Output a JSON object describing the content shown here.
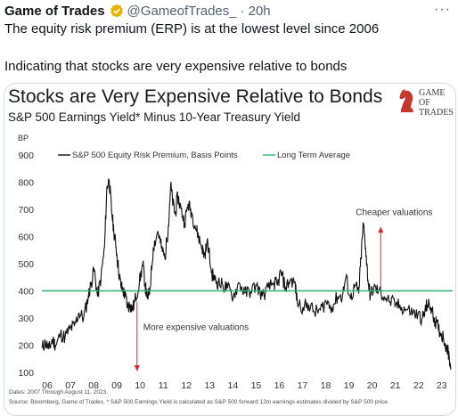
{
  "tweet": {
    "author": "Game of Trades",
    "handle": "@GameofTrades_",
    "separator": "·",
    "time": "20h",
    "menu_label": "···",
    "line1": "The equity risk premium (ERP) is at the lowest level since 2006",
    "line2": "Indicating that stocks are very expensive relative to bonds"
  },
  "logo": {
    "line1": "GAME OF",
    "line2": "TRADES"
  },
  "footnotes": {
    "dates": "Dates: 2007 Through August 11, 2023.",
    "source": "Source: Bloomberg, Game of Trades. * S&P 500 Earnings Yield is calculated as S&P 500 forward 12m earnings estimates divided by S&P 500 price."
  },
  "colors": {
    "series": "#111111",
    "average": "#2bb673",
    "arrow": "#d7262b",
    "card_border": "#cfd9de",
    "verified": "#e6b400"
  },
  "chart_data": {
    "type": "line",
    "title": "Stocks are Very Expensive Relative to Bonds",
    "subtitle": "S&P 500 Earnings Yield* Minus 10-Year Treasury Yield",
    "ylabel": "BP",
    "ylim": [
      100,
      900
    ],
    "yticks": [
      100,
      200,
      300,
      400,
      500,
      600,
      700,
      800,
      900
    ],
    "xlim": [
      2006.0,
      2023.7
    ],
    "xticks": [
      "06",
      "07",
      "08",
      "09",
      "10",
      "11",
      "12",
      "13",
      "14",
      "15",
      "16",
      "17",
      "18",
      "19",
      "20",
      "21",
      "22",
      "23"
    ],
    "grid": false,
    "legend_placement": "top",
    "series": [
      {
        "name": "S&P 500 Equity Risk Premium, Basis Points",
        "x": [
          2006.0,
          2006.15,
          2006.3,
          2006.45,
          2006.6,
          2006.8,
          2007.0,
          2007.2,
          2007.4,
          2007.6,
          2007.8,
          2008.0,
          2008.1,
          2008.25,
          2008.4,
          2008.55,
          2008.7,
          2008.8,
          2008.9,
          2009.0,
          2009.1,
          2009.2,
          2009.3,
          2009.4,
          2009.5,
          2009.6,
          2009.7,
          2009.8,
          2009.9,
          2010.0,
          2010.2,
          2010.35,
          2010.45,
          2010.55,
          2010.65,
          2010.8,
          2011.0,
          2011.15,
          2011.3,
          2011.45,
          2011.55,
          2011.65,
          2011.75,
          2011.85,
          2012.0,
          2012.15,
          2012.3,
          2012.45,
          2012.6,
          2012.75,
          2012.9,
          2013.0,
          2013.15,
          2013.3,
          2013.45,
          2013.6,
          2013.8,
          2014.0,
          2014.25,
          2014.5,
          2014.75,
          2015.0,
          2015.25,
          2015.5,
          2015.75,
          2016.0,
          2016.15,
          2016.3,
          2016.5,
          2016.7,
          2016.9,
          2017.0,
          2017.25,
          2017.5,
          2017.75,
          2018.0,
          2018.25,
          2018.5,
          2018.75,
          2018.95,
          2019.1,
          2019.3,
          2019.5,
          2019.65,
          2019.75,
          2019.85,
          2019.95,
          2020.05,
          2020.15,
          2020.3,
          2020.5,
          2020.75,
          2021.0,
          2021.25,
          2021.5,
          2021.75,
          2022.0,
          2022.2,
          2022.4,
          2022.5,
          2022.6,
          2022.75,
          2022.9,
          2023.0,
          2023.15,
          2023.3,
          2023.45,
          2023.55,
          2023.62
        ],
        "y": [
          190,
          210,
          185,
          220,
          200,
          240,
          230,
          260,
          270,
          320,
          300,
          380,
          420,
          480,
          380,
          450,
          560,
          780,
          810,
          700,
          620,
          560,
          480,
          420,
          400,
          380,
          340,
          350,
          330,
          360,
          430,
          500,
          420,
          370,
          400,
          560,
          620,
          560,
          520,
          640,
          790,
          720,
          680,
          750,
          700,
          650,
          720,
          690,
          640,
          600,
          560,
          530,
          580,
          470,
          440,
          430,
          420,
          410,
          380,
          430,
          390,
          400,
          420,
          380,
          410,
          430,
          420,
          470,
          410,
          440,
          430,
          360,
          340,
          350,
          320,
          330,
          360,
          340,
          380,
          380,
          450,
          370,
          420,
          390,
          520,
          650,
          560,
          440,
          380,
          410,
          400,
          380,
          360,
          350,
          340,
          330,
          320,
          310,
          300,
          320,
          350,
          340,
          300,
          280,
          250,
          230,
          190,
          160,
          110
        ]
      },
      {
        "name": "Long Term Average",
        "value": 400
      }
    ],
    "annotations": [
      {
        "text": "Cheaper valuations",
        "x": 2020.6,
        "y_from": 400,
        "y_to": 640
      },
      {
        "text": "More expensive valuations",
        "x": 2010.1,
        "y_from": 400,
        "y_to": 100
      }
    ]
  }
}
